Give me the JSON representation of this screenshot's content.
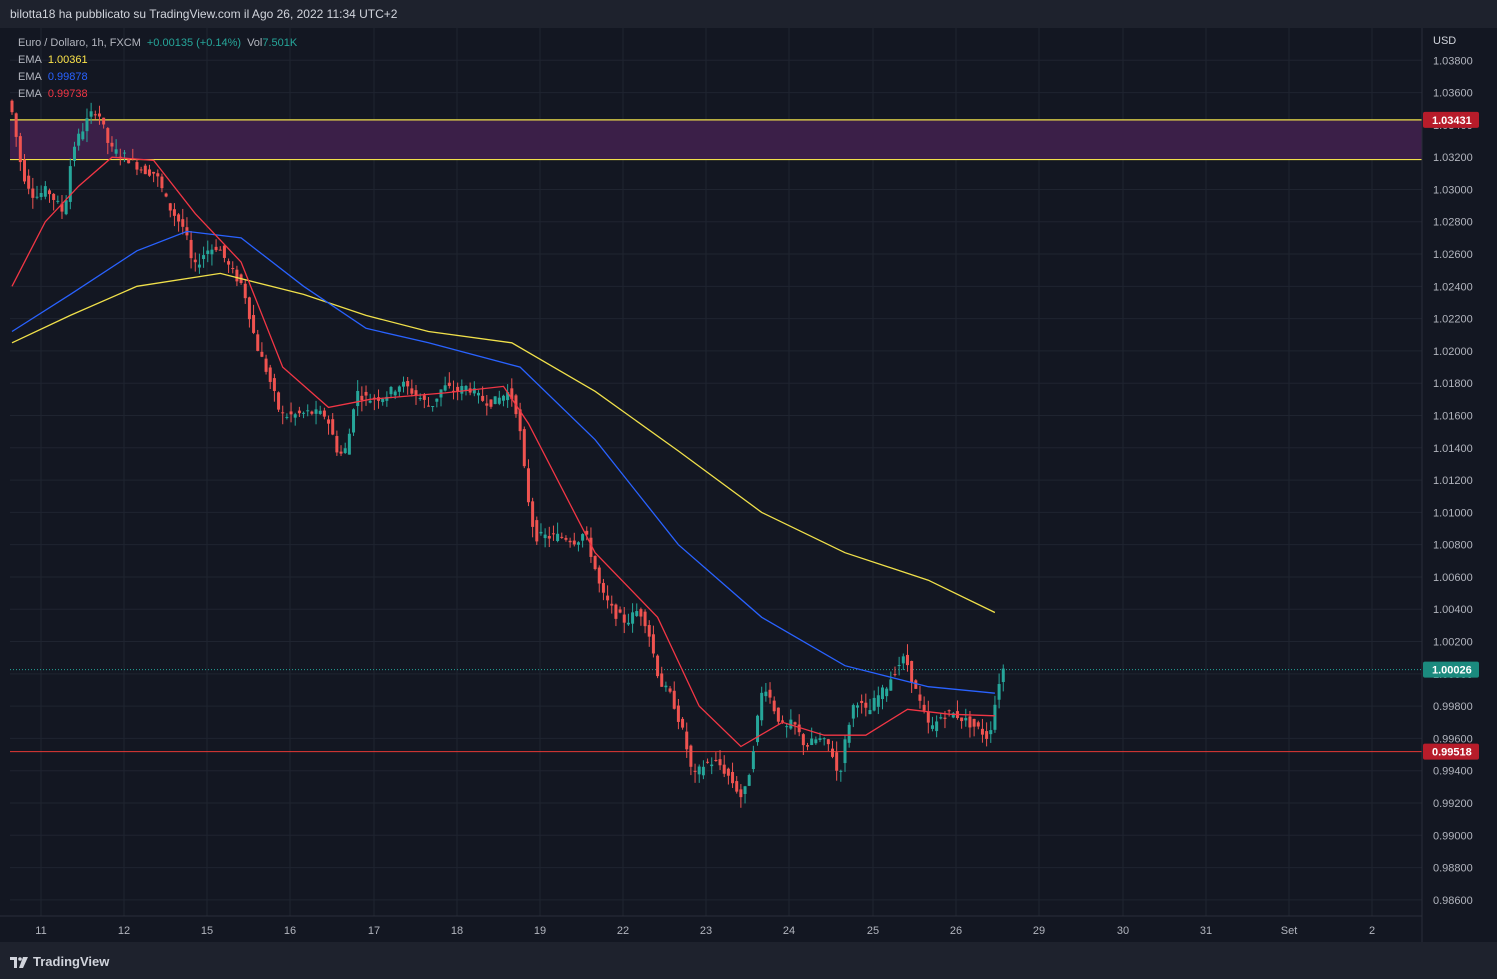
{
  "header": {
    "publisher_text": "bilotta18 ha pubblicato su TradingView.com il Ago 26, 2022 11:34 UTC+2"
  },
  "legend": {
    "symbol": "Euro / Dollaro, 1h, FXCM",
    "change": "+0.00135 (+0.14%)",
    "vol_label": "Vol",
    "vol_value": "7.501K",
    "emas": [
      {
        "label": "EMA",
        "value": "1.00361",
        "color": "#fbe34a"
      },
      {
        "label": "EMA",
        "value": "0.99878",
        "color": "#2962ff"
      },
      {
        "label": "EMA",
        "value": "0.99738",
        "color": "#f23645"
      }
    ]
  },
  "footer": {
    "brand": "TradingView"
  },
  "colors": {
    "background": "#131722",
    "grid": "#1f2430",
    "up": "#26a69a",
    "down": "#ef5350",
    "zone_fill": "#3b1f48",
    "zone_line": "#f0e04a",
    "support_line": "#e53935",
    "price_dotted": "#26a69a"
  },
  "chart_data": {
    "type": "candlestick",
    "symbol": "EURUSD",
    "timeframe": "1h",
    "currency_label": "USD",
    "ylim": [
      0.985,
      1.04
    ],
    "y_ticks": [
      "1.03800",
      "1.03600",
      "1.03400",
      "1.03200",
      "1.03000",
      "1.02800",
      "1.02600",
      "1.02400",
      "1.02200",
      "1.02000",
      "1.01800",
      "1.01600",
      "1.01400",
      "1.01200",
      "1.01000",
      "1.00800",
      "1.00600",
      "1.00400",
      "1.00200",
      "1.00000",
      "0.99800",
      "0.99600",
      "0.99400",
      "0.99200",
      "0.99000",
      "0.98800",
      "0.98600"
    ],
    "x_labels": [
      "11",
      "12",
      "15",
      "16",
      "17",
      "18",
      "19",
      "22",
      "23",
      "24",
      "25",
      "26",
      "29",
      "30",
      "31",
      "Set",
      "2"
    ],
    "anchors": [
      {
        "label": "11",
        "bar": 4
      },
      {
        "label": "12",
        "bar": 24
      },
      {
        "label": "15",
        "bar": 44
      },
      {
        "label": "16",
        "bar": 64
      },
      {
        "label": "17",
        "bar": 84
      },
      {
        "label": "18",
        "bar": 104
      },
      {
        "label": "19",
        "bar": 124
      },
      {
        "label": "22",
        "bar": 144
      },
      {
        "label": "23",
        "bar": 164
      },
      {
        "label": "24",
        "bar": 184
      },
      {
        "label": "25",
        "bar": 204
      },
      {
        "label": "26",
        "bar": 224
      }
    ],
    "path_points": [
      [
        0,
        1.0355
      ],
      [
        3,
        1.031
      ],
      [
        6,
        1.0295
      ],
      [
        9,
        1.03
      ],
      [
        13,
        1.0285
      ],
      [
        15,
        1.0325
      ],
      [
        19,
        1.0345
      ],
      [
        21,
        1.035
      ],
      [
        24,
        1.0325
      ],
      [
        28,
        1.032
      ],
      [
        32,
        1.0312
      ],
      [
        35,
        1.031
      ],
      [
        38,
        1.029
      ],
      [
        42,
        1.0275
      ],
      [
        44,
        1.025
      ],
      [
        47,
        1.0262
      ],
      [
        50,
        1.0265
      ],
      [
        53,
        1.025
      ],
      [
        56,
        1.024
      ],
      [
        59,
        1.0205
      ],
      [
        62,
        1.0185
      ],
      [
        65,
        1.016
      ],
      [
        68,
        1.016
      ],
      [
        72,
        1.0162
      ],
      [
        76,
        1.016
      ],
      [
        79,
        1.0135
      ],
      [
        81,
        1.014
      ],
      [
        83,
        1.0175
      ],
      [
        86,
        1.017
      ],
      [
        90,
        1.0172
      ],
      [
        94,
        1.018
      ],
      [
        98,
        1.0172
      ],
      [
        101,
        1.0165
      ],
      [
        104,
        1.0178
      ],
      [
        107,
        1.0175
      ],
      [
        110,
        1.0178
      ],
      [
        113,
        1.017
      ],
      [
        116,
        1.0168
      ],
      [
        120,
        1.0175
      ],
      [
        122,
        1.016
      ],
      [
        124,
        1.0115
      ],
      [
        126,
        1.0085
      ],
      [
        130,
        1.0085
      ],
      [
        133,
        1.0085
      ],
      [
        136,
        1.0082
      ],
      [
        138,
        1.0088
      ],
      [
        140,
        1.007
      ],
      [
        142,
        1.005
      ],
      [
        145,
        1.0038
      ],
      [
        148,
        1.0032
      ],
      [
        151,
        1.004
      ],
      [
        153,
        1.003
      ],
      [
        156,
        0.9995
      ],
      [
        159,
        0.9985
      ],
      [
        162,
        0.996
      ],
      [
        164,
        0.9935
      ],
      [
        167,
        0.9945
      ],
      [
        170,
        0.9945
      ],
      [
        173,
        0.9935
      ],
      [
        176,
        0.9922
      ],
      [
        178,
        0.9945
      ],
      [
        179,
        0.9965
      ],
      [
        181,
        0.9995
      ],
      [
        184,
        0.9975
      ],
      [
        186,
        0.9965
      ],
      [
        188,
        0.997
      ],
      [
        191,
        0.9955
      ],
      [
        194,
        0.996
      ],
      [
        197,
        0.9955
      ],
      [
        199,
        0.9935
      ],
      [
        201,
        0.9965
      ],
      [
        203,
        0.9985
      ],
      [
        206,
        0.9975
      ],
      [
        208,
        0.9985
      ],
      [
        210,
        0.999
      ],
      [
        213,
        1.0005
      ],
      [
        215,
        1.001
      ],
      [
        218,
        0.9985
      ],
      [
        221,
        0.9965
      ],
      [
        224,
        0.9975
      ],
      [
        227,
        0.9975
      ],
      [
        230,
        0.997
      ],
      [
        233,
        0.9965
      ],
      [
        235,
        0.996
      ],
      [
        236,
        0.9975
      ],
      [
        237,
        0.9988
      ],
      [
        238,
        1.0003
      ]
    ],
    "ema_series": [
      {
        "name": "EMA",
        "value": 1.00361,
        "color": "#f0e04a",
        "points": [
          [
            0,
            1.0205
          ],
          [
            14,
            1.0222
          ],
          [
            30,
            1.024
          ],
          [
            50,
            1.0248
          ],
          [
            70,
            1.0235
          ],
          [
            85,
            1.0222
          ],
          [
            100,
            1.0212
          ],
          [
            120,
            1.0205
          ],
          [
            140,
            1.0175
          ],
          [
            160,
            1.0138
          ],
          [
            180,
            1.01
          ],
          [
            200,
            1.0075
          ],
          [
            220,
            1.0058
          ],
          [
            236,
            1.0038
          ]
        ]
      },
      {
        "name": "EMA",
        "value": 0.99878,
        "color": "#2962ff",
        "points": [
          [
            0,
            1.0212
          ],
          [
            14,
            1.0235
          ],
          [
            30,
            1.0262
          ],
          [
            42,
            1.0274
          ],
          [
            55,
            1.027
          ],
          [
            70,
            1.024
          ],
          [
            85,
            1.0214
          ],
          [
            100,
            1.0205
          ],
          [
            122,
            1.019
          ],
          [
            140,
            1.0145
          ],
          [
            160,
            1.008
          ],
          [
            180,
            1.0035
          ],
          [
            200,
            1.0005
          ],
          [
            220,
            0.9992
          ],
          [
            236,
            0.9988
          ]
        ]
      },
      {
        "name": "EMA",
        "value": 0.99738,
        "color": "#f23645",
        "points": [
          [
            0,
            1.024
          ],
          [
            8,
            1.028
          ],
          [
            16,
            1.0302
          ],
          [
            24,
            1.032
          ],
          [
            34,
            1.0318
          ],
          [
            44,
            1.0285
          ],
          [
            55,
            1.0255
          ],
          [
            65,
            1.019
          ],
          [
            76,
            1.0165
          ],
          [
            86,
            1.017
          ],
          [
            104,
            1.0174
          ],
          [
            118,
            1.0178
          ],
          [
            124,
            1.0155
          ],
          [
            140,
            1.0075
          ],
          [
            155,
            1.0035
          ],
          [
            165,
            0.998
          ],
          [
            175,
            0.9955
          ],
          [
            185,
            0.997
          ],
          [
            195,
            0.9962
          ],
          [
            205,
            0.9962
          ],
          [
            215,
            0.9978
          ],
          [
            225,
            0.9975
          ],
          [
            236,
            0.9974
          ]
        ]
      }
    ],
    "zone": {
      "top": 1.03431,
      "bottom": 1.03185
    },
    "price_labels": [
      {
        "value": "1.03431",
        "price": 1.03431,
        "bg": "#b71c2a",
        "line": "zone"
      },
      {
        "value": "1.00026",
        "price": 1.00026,
        "bg": "#1b8a7e",
        "line": "dotted"
      },
      {
        "value": "0.99518",
        "price": 0.99518,
        "bg": "#b71c2a",
        "line": "solid"
      }
    ]
  }
}
